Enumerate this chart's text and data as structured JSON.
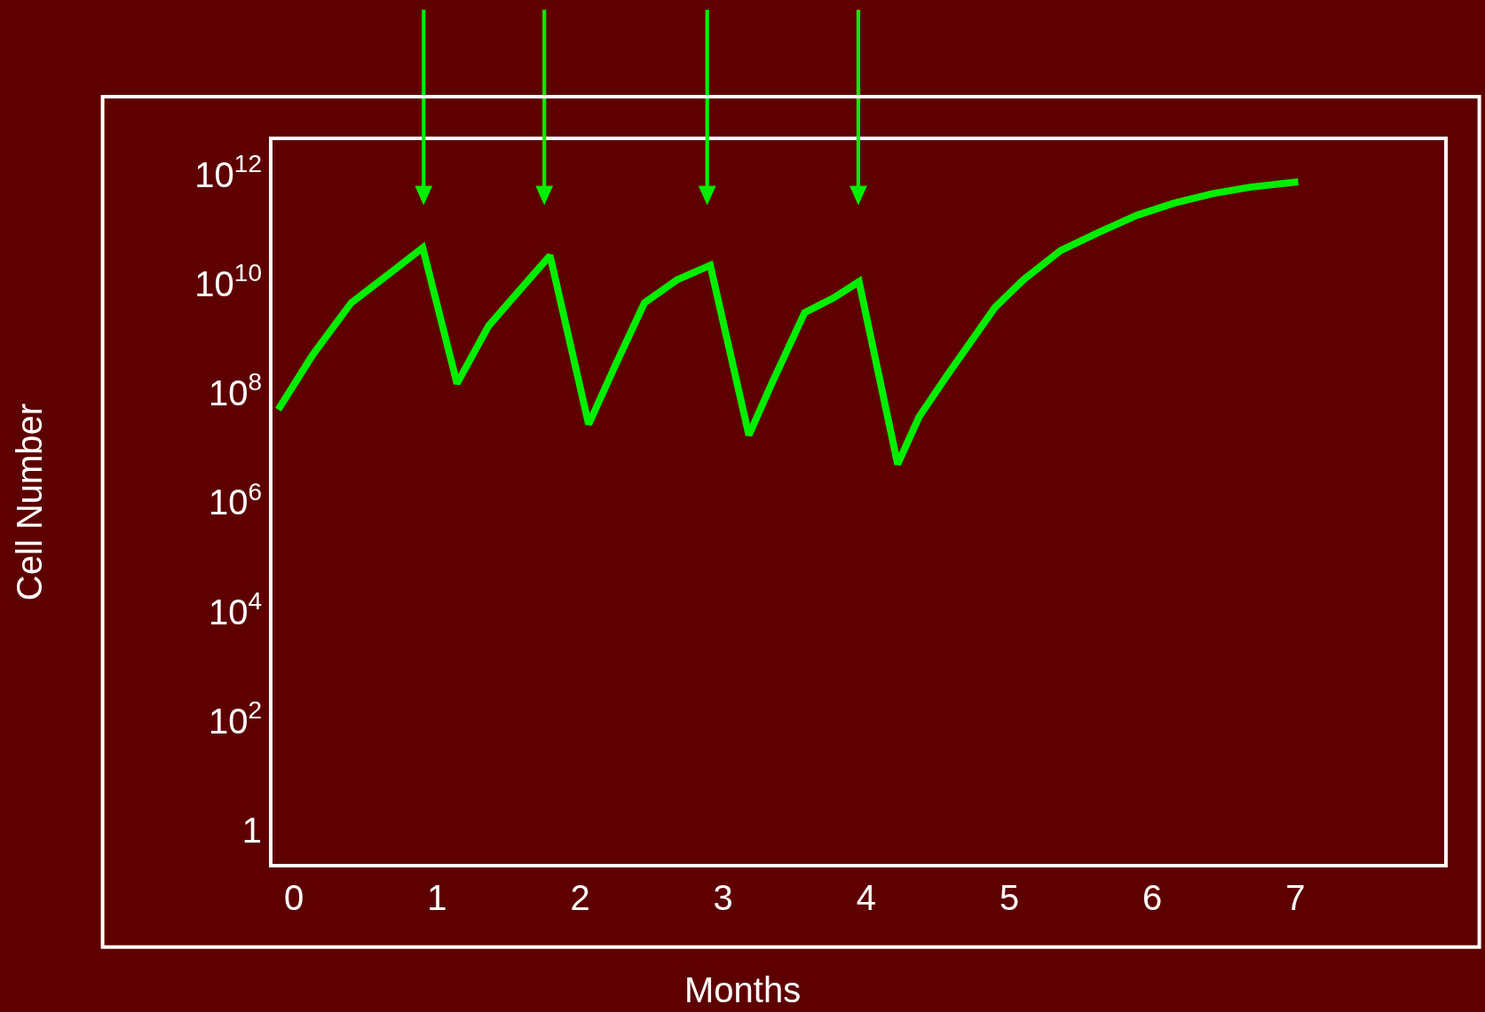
{
  "chart_data": {
    "type": "line",
    "xlabel": "Months",
    "ylabel": "Cell Number",
    "log": "y",
    "x": [
      -0.11,
      0.13,
      0.4,
      0.66,
      0.9,
      1.14,
      1.36,
      1.56,
      1.79,
      2.06,
      2.25,
      2.45,
      2.68,
      2.91,
      3.18,
      3.34,
      3.57,
      3.77,
      3.95,
      4.22,
      4.37,
      4.57,
      4.9,
      5.1,
      5.36,
      5.63,
      5.89,
      6.15,
      6.42,
      6.68,
      7.02
    ],
    "series": [
      {
        "color": "#00ee00",
        "values": [
          50000000.0,
          500000000.0,
          4500000000.0,
          15000000000.0,
          46000000000.0,
          150000000.0,
          1700000000.0,
          6800000000.0,
          33000000000.0,
          27000000.0,
          340000000.0,
          4500000000.0,
          12000000000.0,
          22000000000.0,
          17000000.0,
          150000000.0,
          3000000000.0,
          5500000000.0,
          11000000000.0,
          5000000.0,
          37000000.0,
          220000000.0,
          3700000000.0,
          12000000000.0,
          41000000000.0,
          89000000000.0,
          180000000000.0,
          300000000000.0,
          450000000000.0,
          590000000000.0,
          740000000000.0
        ]
      }
    ],
    "xlim": [
      -0.15,
      8.04
    ],
    "ylim": [
      0.24,
      4300000000000.0
    ],
    "xticks": [
      0,
      1,
      2,
      3,
      4,
      5,
      6,
      7
    ],
    "yticks": [
      1,
      {
        "value": 100.0,
        "label": "10$^{2}$"
      },
      {
        "value": 10000.0,
        "label": "10$^{4}$"
      },
      {
        "value": 1000000.0,
        "label": "10$^{6}$"
      },
      {
        "value": 100000000.0,
        "label": "10$^{8}$"
      },
      {
        "value": 10000000000.0,
        "label": "10$^{10}$"
      },
      {
        "value": 1000000000000.0,
        "label": "10$^{12}$"
      }
    ],
    "grid": false,
    "marker": "none",
    "line_style": "solid"
  }
}
